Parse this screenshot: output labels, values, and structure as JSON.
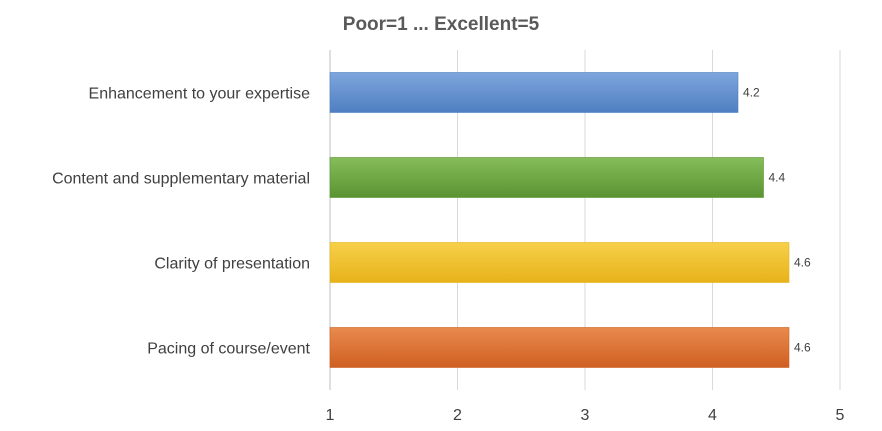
{
  "chart_data": {
    "type": "bar",
    "orientation": "horizontal",
    "title": "Poor=1 ... Excellent=5",
    "xlabel": "",
    "ylabel": "",
    "xlim": [
      1,
      5
    ],
    "ticks": [
      "1",
      "2",
      "3",
      "4",
      "5"
    ],
    "grid": true,
    "legend": "none",
    "categories": [
      "Enhancement to your expertise",
      "Content and supplementary material",
      "Clarity of presentation",
      "Pacing of course/event"
    ],
    "values": [
      4.2,
      4.4,
      4.6,
      4.6
    ],
    "data_labels": [
      "4.2",
      "4.4",
      "4.6",
      "4.6"
    ],
    "colors": [
      {
        "light": "#7ea6dd",
        "dark": "#4f7fc1"
      },
      {
        "light": "#86bd5a",
        "dark": "#5a9332"
      },
      {
        "light": "#f7d04a",
        "dark": "#e7b21a"
      },
      {
        "light": "#e98a4e",
        "dark": "#cf5f22"
      }
    ]
  }
}
